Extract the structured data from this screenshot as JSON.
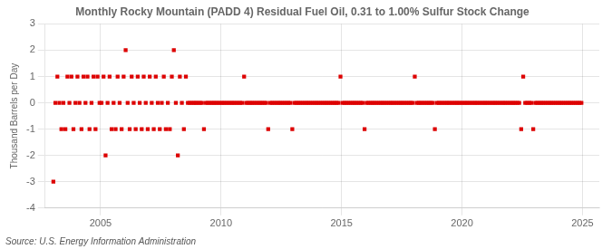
{
  "chart_data": {
    "type": "scatter",
    "title": "Monthly Rocky Mountain (PADD 4) Residual Fuel Oil, 0.31 to 1.00% Sulfur Stock Change",
    "ylabel": "Thousand Barrels per Day",
    "annotations": [
      "Source: U.S. Energy Information Administration"
    ],
    "xlim": [
      2002.7,
      2025.7
    ],
    "ylim": [
      -4,
      3
    ],
    "xticks": [
      2005,
      2010,
      2015,
      2020,
      2025
    ],
    "yticks": [
      -4,
      -3,
      -2,
      -1,
      0,
      1,
      2,
      3
    ],
    "grid": true,
    "color": "#dd0000",
    "marker": "square",
    "x": [
      2003.0416666666667,
      2003.125,
      2003.2083333333333,
      2003.2916666666667,
      2003.375,
      2003.4583333333333,
      2003.5416666666667,
      2003.625,
      2003.7083333333333,
      2003.7916666666667,
      2003.875,
      2003.9583333333333,
      2004.0416666666667,
      2004.125,
      2004.2083333333333,
      2004.2916666666667,
      2004.375,
      2004.4583333333333,
      2004.5416666666667,
      2004.625,
      2004.7083333333333,
      2004.7916666666667,
      2004.875,
      2004.9583333333333,
      2005.0416666666667,
      2005.125,
      2005.2083333333333,
      2005.2916666666667,
      2005.375,
      2005.4583333333333,
      2005.5416666666667,
      2005.625,
      2005.7083333333333,
      2005.7916666666667,
      2005.875,
      2005.9583333333333,
      2006.0416666666667,
      2006.125,
      2006.2083333333333,
      2006.2916666666667,
      2006.375,
      2006.4583333333333,
      2006.5416666666667,
      2006.625,
      2006.7083333333333,
      2006.7916666666667,
      2006.875,
      2006.9583333333333,
      2007.0416666666667,
      2007.125,
      2007.2083333333333,
      2007.2916666666667,
      2007.375,
      2007.4583333333333,
      2007.5416666666667,
      2007.625,
      2007.7083333333333,
      2007.7916666666667,
      2007.875,
      2007.9583333333333,
      2008.0416666666667,
      2008.125,
      2008.2083333333333,
      2008.2916666666667,
      2008.375,
      2008.4583333333333,
      2008.5416666666667,
      2008.625,
      2008.7083333333333,
      2008.7916666666667,
      2008.875,
      2008.9583333333333,
      2009.0416666666667,
      2009.125,
      2009.2083333333333,
      2009.2916666666667,
      2009.375,
      2009.4583333333333,
      2009.5416666666667,
      2009.625,
      2009.7083333333333,
      2009.7916666666667,
      2009.875,
      2009.9583333333333,
      2010.0416666666667,
      2010.125,
      2010.2083333333333,
      2010.2916666666667,
      2010.375,
      2010.4583333333333,
      2010.5416666666667,
      2010.625,
      2010.7083333333333,
      2010.7916666666667,
      2010.875,
      2010.9583333333333,
      2011.0416666666667,
      2011.125,
      2011.2083333333333,
      2011.2916666666667,
      2011.375,
      2011.4583333333333,
      2011.5416666666667,
      2011.625,
      2011.7083333333333,
      2011.7916666666667,
      2011.875,
      2011.9583333333333,
      2012.0416666666667,
      2012.125,
      2012.2083333333333,
      2012.2916666666667,
      2012.375,
      2012.4583333333333,
      2012.5416666666667,
      2012.625,
      2012.7083333333333,
      2012.7916666666667,
      2012.875,
      2012.9583333333333,
      2013.0416666666667,
      2013.125,
      2013.2083333333333,
      2013.2916666666667,
      2013.375,
      2013.4583333333333,
      2013.5416666666667,
      2013.625,
      2013.7083333333333,
      2013.7916666666667,
      2013.875,
      2013.9583333333333,
      2014.0416666666667,
      2014.125,
      2014.2083333333333,
      2014.2916666666667,
      2014.375,
      2014.4583333333333,
      2014.5416666666667,
      2014.625,
      2014.7083333333333,
      2014.7916666666667,
      2014.875,
      2014.9583333333333,
      2015.0416666666667,
      2015.125,
      2015.2083333333333,
      2015.2916666666667,
      2015.375,
      2015.4583333333333,
      2015.5416666666667,
      2015.625,
      2015.7083333333333,
      2015.7916666666667,
      2015.875,
      2015.9583333333333,
      2016.0416666666667,
      2016.125,
      2016.2083333333333,
      2016.2916666666667,
      2016.375,
      2016.4583333333333,
      2016.5416666666667,
      2016.625,
      2016.7083333333333,
      2016.7916666666667,
      2016.875,
      2016.9583333333333,
      2017.0416666666667,
      2017.125,
      2017.2083333333333,
      2017.2916666666667,
      2017.375,
      2017.4583333333333,
      2017.5416666666667,
      2017.625,
      2017.7083333333333,
      2017.7916666666667,
      2017.875,
      2017.9583333333333,
      2018.0416666666667,
      2018.125,
      2018.2083333333333,
      2018.2916666666667,
      2018.375,
      2018.4583333333333,
      2018.5416666666667,
      2018.625,
      2018.7083333333333,
      2018.7916666666667,
      2018.875,
      2018.9583333333333,
      2019.0416666666667,
      2019.125,
      2019.2083333333333,
      2019.2916666666667,
      2019.375,
      2019.4583333333333,
      2019.5416666666667,
      2019.625,
      2019.7083333333333,
      2019.7916666666667,
      2019.875,
      2019.9583333333333,
      2020.0416666666667,
      2020.125,
      2020.2083333333333,
      2020.2916666666667,
      2020.375,
      2020.4583333333333,
      2020.5416666666667,
      2020.625,
      2020.7083333333333,
      2020.7916666666667,
      2020.875,
      2020.9583333333333,
      2021.0416666666667,
      2021.125,
      2021.2083333333333,
      2021.2916666666667,
      2021.375,
      2021.4583333333333,
      2021.5416666666667,
      2021.625,
      2021.7083333333333,
      2021.7916666666667,
      2021.875,
      2021.9583333333333,
      2022.0416666666667,
      2022.125,
      2022.2083333333333,
      2022.2916666666667,
      2022.375,
      2022.4583333333333,
      2022.5416666666667,
      2022.625,
      2022.7083333333333,
      2022.7916666666667,
      2022.875,
      2022.9583333333333,
      2023.0416666666667,
      2023.125,
      2023.2083333333333,
      2023.2916666666667,
      2023.375,
      2023.4583333333333,
      2023.5416666666667,
      2023.625,
      2023.7083333333333,
      2023.7916666666667,
      2023.875,
      2023.9583333333333,
      2024.0416666666667,
      2024.125,
      2024.2083333333333,
      2024.2916666666667,
      2024.375,
      2024.4583333333333,
      2024.5416666666667,
      2024.625,
      2024.7083333333333,
      2024.7916666666667,
      2024.875,
      2024.9583333333333
    ],
    "values": [
      -3,
      0,
      1,
      0,
      -1,
      0,
      -1,
      1,
      0,
      1,
      -1,
      0,
      1,
      0,
      -1,
      1,
      0,
      1,
      -1,
      0,
      1,
      -1,
      1,
      0,
      0,
      1,
      -2,
      0,
      1,
      -1,
      0,
      -1,
      1,
      0,
      -1,
      1,
      2,
      0,
      -1,
      1,
      0,
      -1,
      1,
      0,
      -1,
      1,
      0,
      -1,
      1,
      0,
      -1,
      1,
      0,
      -1,
      0,
      1,
      -1,
      0,
      -1,
      1,
      2,
      0,
      -2,
      1,
      0,
      -1,
      1,
      0,
      0,
      0,
      0,
      0,
      0,
      0,
      0,
      -1,
      0,
      0,
      0,
      0,
      0,
      0,
      0,
      0,
      0,
      0,
      0,
      0,
      0,
      0,
      0,
      0,
      0,
      0,
      0,
      1,
      0,
      0,
      0,
      0,
      0,
      0,
      0,
      0,
      0,
      0,
      0,
      -1,
      0,
      0,
      0,
      0,
      0,
      0,
      0,
      0,
      0,
      0,
      0,
      -1,
      0,
      0,
      0,
      0,
      0,
      0,
      0,
      0,
      0,
      0,
      0,
      0,
      0,
      0,
      0,
      0,
      0,
      0,
      0,
      0,
      0,
      0,
      0,
      1,
      0,
      0,
      0,
      0,
      0,
      0,
      0,
      0,
      0,
      0,
      0,
      -1,
      0,
      0,
      0,
      0,
      0,
      0,
      0,
      0,
      0,
      0,
      0,
      0,
      0,
      0,
      0,
      0,
      0,
      0,
      0,
      0,
      0,
      0,
      0,
      0,
      1,
      0,
      0,
      0,
      0,
      0,
      0,
      0,
      0,
      0,
      -1,
      0,
      0,
      0,
      0,
      0,
      0,
      0,
      0,
      0,
      0,
      0,
      0,
      0,
      0,
      0,
      0,
      0,
      0,
      0,
      0,
      0,
      0,
      0,
      0,
      0,
      0,
      0,
      0,
      0,
      0,
      0,
      0,
      0,
      0,
      0,
      0,
      0,
      0,
      0,
      0,
      0,
      0,
      -1,
      1,
      0,
      0,
      0,
      0,
      -1,
      0,
      0,
      0,
      0,
      0,
      0,
      0,
      0,
      0,
      0,
      0,
      0,
      0,
      0,
      0,
      0,
      0,
      0,
      0,
      0,
      0,
      0,
      0,
      0
    ]
  }
}
